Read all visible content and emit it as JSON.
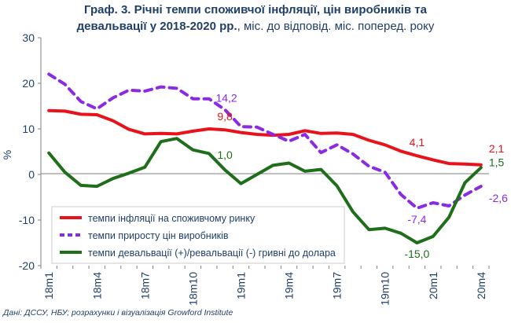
{
  "title": {
    "line1": "Граф. 3. Річні темпи споживчої інфляції, цін виробників та",
    "line2_bold": "девальвації у 2018-2020 рр.",
    "line2_rest": ", міс. до відповід. міс. поперед. року"
  },
  "source": "Дані: ДССУ, НБУ; розрахунки і візуалізація Growford Institute",
  "chart_data": {
    "type": "line",
    "ylabel": "%",
    "ylim": [
      -20,
      30
    ],
    "yticks": [
      -20,
      -10,
      0,
      10,
      20,
      30
    ],
    "grid": false,
    "legend_position": "bottom-left",
    "x": [
      "18m1",
      "18m2",
      "18m3",
      "18m4",
      "18m5",
      "18m6",
      "18m7",
      "18m8",
      "18m9",
      "18m10",
      "18m11",
      "18m12",
      "19m1",
      "19m2",
      "19m3",
      "19m4",
      "19m5",
      "19m6",
      "19m7",
      "19m8",
      "19m9",
      "19m10",
      "19m11",
      "19m12",
      "20m1",
      "20m2",
      "20m3",
      "20m4"
    ],
    "xtick_labels": [
      "18m1",
      "18m4",
      "18m7",
      "18m10",
      "19m1",
      "19m4",
      "19m7",
      "19m10",
      "20m1",
      "20m4"
    ],
    "series": [
      {
        "name": "темпи інфляції на споживчому ринку",
        "color": "#e8121b",
        "style": "solid",
        "values": [
          14.0,
          13.9,
          13.2,
          13.1,
          11.8,
          9.9,
          8.9,
          9.0,
          8.9,
          9.5,
          10.0,
          9.8,
          9.2,
          8.8,
          8.6,
          8.8,
          9.6,
          9.0,
          9.1,
          8.8,
          7.5,
          6.5,
          5.1,
          4.1,
          3.2,
          2.4,
          2.3,
          2.1
        ],
        "annotations": [
          {
            "index": 11,
            "label": "9,8"
          },
          {
            "index": 23,
            "label": "4,1"
          },
          {
            "index": 27,
            "label": "2,1"
          }
        ]
      },
      {
        "name": "темпи приросту цін виробників",
        "color": "#8a2be2",
        "style": "dashed",
        "values": [
          22.0,
          19.8,
          16.0,
          14.4,
          16.8,
          18.5,
          18.3,
          19.2,
          18.9,
          16.6,
          16.6,
          14.2,
          10.5,
          10.4,
          8.8,
          7.3,
          8.8,
          4.8,
          6.5,
          4.5,
          1.8,
          0.5,
          -4.4,
          -7.4,
          -6.2,
          -6.9,
          -4.5,
          -2.6
        ],
        "annotations": [
          {
            "index": 11,
            "label": "14,2"
          },
          {
            "index": 23,
            "label": "-7,4"
          },
          {
            "index": 27,
            "label": "-2,6"
          }
        ]
      },
      {
        "name": "темпи девальвації (+)/ревальвації (-) гривні до долара",
        "color": "#1e6e1a",
        "style": "solid",
        "values": [
          4.7,
          0.5,
          -2.4,
          -2.6,
          -0.9,
          0.3,
          1.6,
          7.2,
          7.9,
          5.4,
          4.6,
          1.0,
          -2.0,
          0.0,
          2.0,
          2.5,
          0.7,
          1.1,
          -2.5,
          -8.2,
          -12.1,
          -11.8,
          -12.9,
          -15.0,
          -13.6,
          -9.4,
          -1.8,
          1.5
        ],
        "annotations": [
          {
            "index": 11,
            "label": "1,0"
          },
          {
            "index": 23,
            "label": "-15,0"
          },
          {
            "index": 27,
            "label": "1,5"
          }
        ]
      }
    ]
  }
}
